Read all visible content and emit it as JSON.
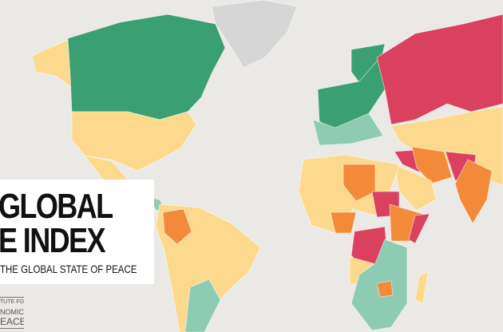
{
  "title": {
    "line1": "GLOBAL",
    "line2": "E INDEX",
    "subtitle": "THE GLOBAL STATE OF PEACE"
  },
  "logo": {
    "line1": "TUTE FOR",
    "line2": "NOMICS",
    "line3": "EACE"
  },
  "colors": {
    "background": "#ebe9e6",
    "very_high_peace": "#3a9f72",
    "high_peace": "#8ecbb3",
    "medium_peace": "#fcd98c",
    "low_peace": "#f28a3a",
    "very_low_peace": "#d9415f",
    "no_data": "#d6d6d6"
  }
}
